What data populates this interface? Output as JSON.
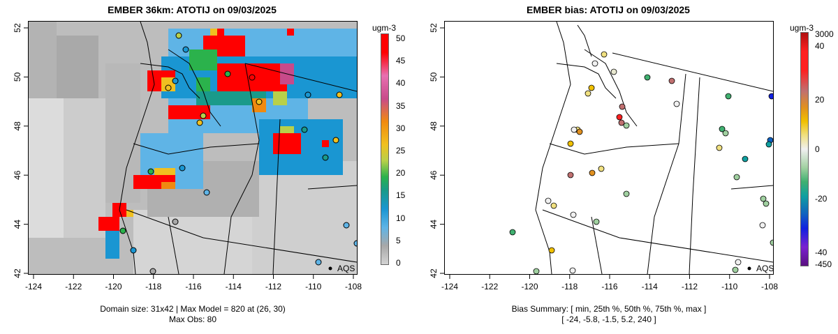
{
  "left": {
    "title": "EMBER 36km: ATOTIJ on 09/03/2025",
    "x_ticks": [
      "-124",
      "-122",
      "-120",
      "-118",
      "-116",
      "-114",
      "-112",
      "-110",
      "-108"
    ],
    "y_ticks": [
      "52",
      "50",
      "48",
      "46",
      "44",
      "42"
    ],
    "colorbar_unit": "ugm-3",
    "colorbar_labels": [
      "50",
      "45",
      "40",
      "35",
      "30",
      "25",
      "20",
      "15",
      "10",
      "5",
      "0"
    ],
    "legend_text": "AQS",
    "caption_line1": "Domain size: 31x42 | Max Model = 820 at (26, 30)",
    "caption_line2": "Max Obs: 80"
  },
  "right": {
    "title": "EMBER bias: ATOTIJ on 09/03/2025",
    "x_ticks": [
      "-124",
      "-122",
      "-120",
      "-118",
      "-116",
      "-114",
      "-112",
      "-110",
      "-108"
    ],
    "y_ticks": [
      "52",
      "50",
      "48",
      "46",
      "44",
      "42"
    ],
    "colorbar_unit": "ugm-3",
    "colorbar_labels": [
      "3000",
      "40",
      "20",
      "0",
      "-20",
      "-40",
      "-450"
    ],
    "legend_text": "AQS",
    "caption_line1": "Bias Summary: [ min, 25th %, 50th %, 75th %, max ]",
    "caption_line2": "[ -24,   -5.8,   -1.5,   5.2,   240 ]"
  },
  "colors": {
    "concentration_scale": [
      "#d3d3d3",
      "#c0c0c0",
      "#a8a8a8",
      "#5fb4e6",
      "#1a96d2",
      "#1a9a8a",
      "#2bb24c",
      "#b8d04a",
      "#f0c020",
      "#f08a10",
      "#c84a8a",
      "#e870b0",
      "#ff0000"
    ],
    "bias_scale": [
      "#5a1080",
      "#7a20d0",
      "#1020e0",
      "#1060c0",
      "#10a0a0",
      "#40b070",
      "#a0d0a0",
      "#f0f0f0",
      "#f0e080",
      "#f0c000",
      "#e09020",
      "#c07070",
      "#ff2020",
      "#b01010"
    ]
  }
}
